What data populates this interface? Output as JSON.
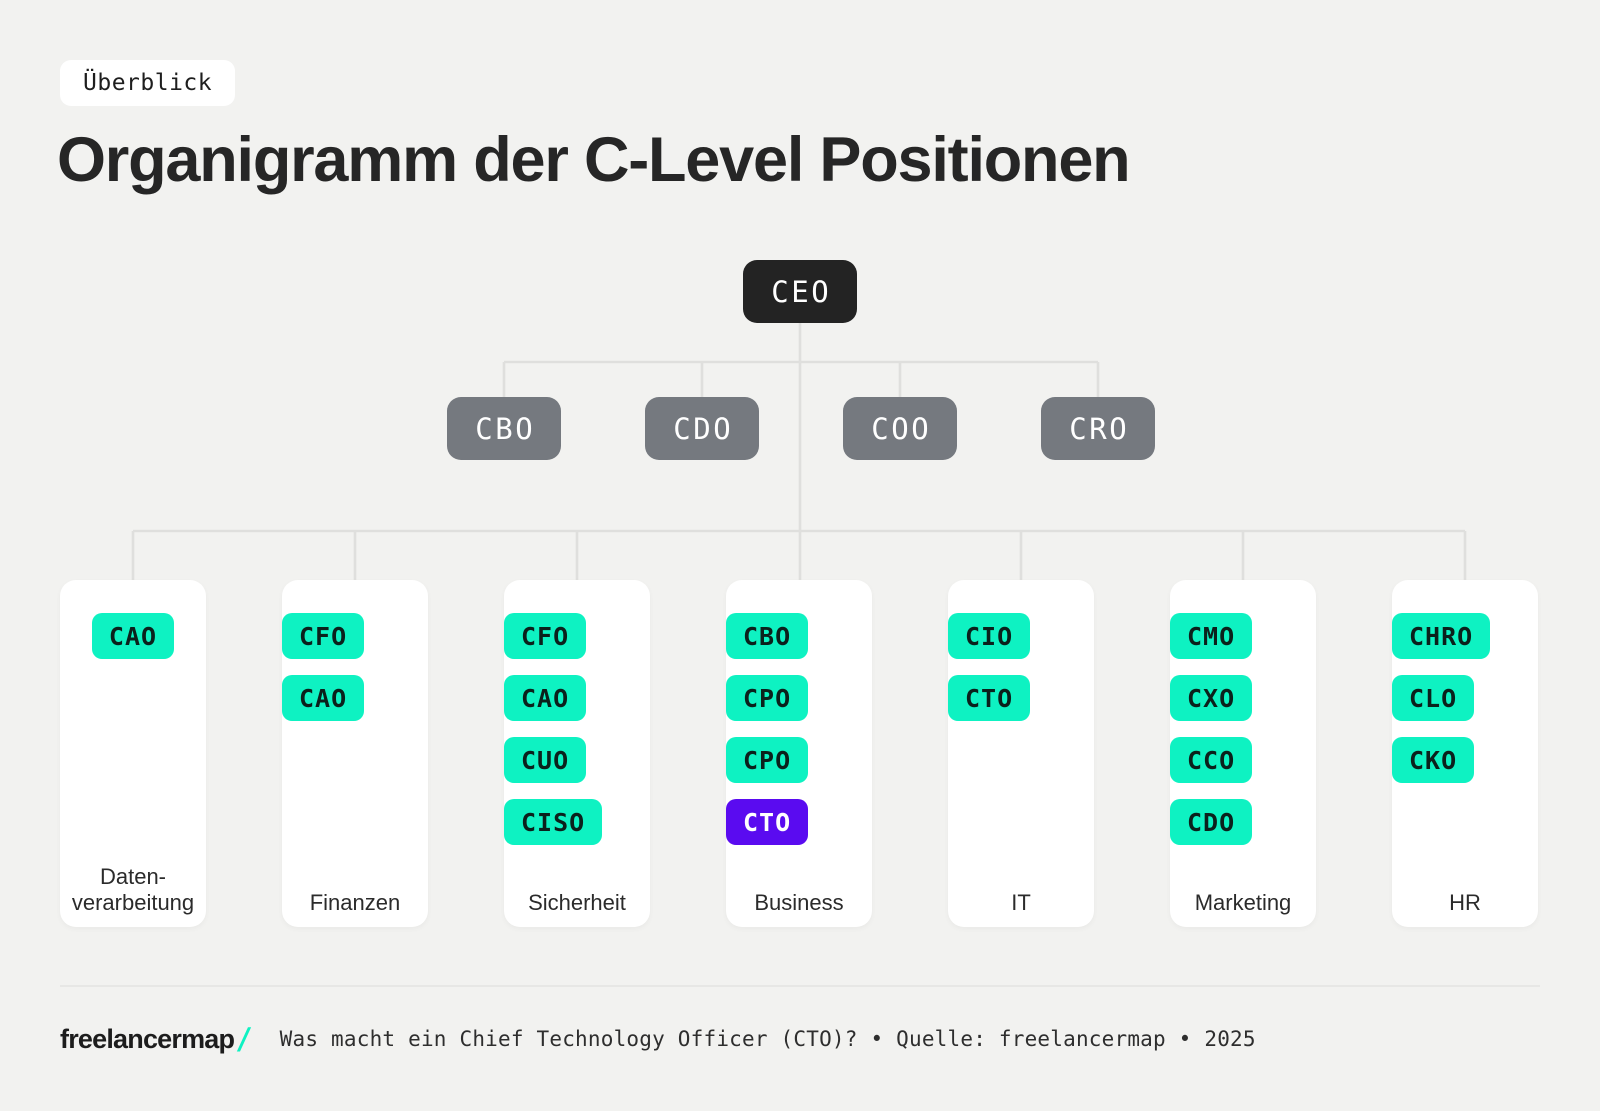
{
  "badge": {
    "label": "Überblick"
  },
  "title": "Organigramm der C-Level Positionen",
  "org": {
    "root": {
      "label": "CEO"
    },
    "executives": [
      {
        "label": "CBO"
      },
      {
        "label": "CDO"
      },
      {
        "label": "COO"
      },
      {
        "label": "CRO"
      }
    ],
    "departments": [
      {
        "label_lines": [
          "Daten-",
          "verarbeitung"
        ],
        "roles": [
          {
            "label": "CAO",
            "variant": "accent"
          }
        ]
      },
      {
        "label_lines": [
          "Finanzen"
        ],
        "roles": [
          {
            "label": "CFO",
            "variant": "accent"
          },
          {
            "label": "CAO",
            "variant": "accent"
          }
        ]
      },
      {
        "label_lines": [
          "Sicherheit"
        ],
        "roles": [
          {
            "label": "CFO",
            "variant": "accent"
          },
          {
            "label": "CAO",
            "variant": "accent"
          },
          {
            "label": "CUO",
            "variant": "accent"
          },
          {
            "label": "CISO",
            "variant": "accent"
          }
        ]
      },
      {
        "label_lines": [
          "Business"
        ],
        "roles": [
          {
            "label": "CBO",
            "variant": "accent"
          },
          {
            "label": "CPO",
            "variant": "accent"
          },
          {
            "label": "CPO",
            "variant": "accent"
          },
          {
            "label": "CTO",
            "variant": "highlight"
          }
        ]
      },
      {
        "label_lines": [
          "IT"
        ],
        "roles": [
          {
            "label": "CIO",
            "variant": "accent"
          },
          {
            "label": "CTO",
            "variant": "accent"
          }
        ]
      },
      {
        "label_lines": [
          "Marketing"
        ],
        "roles": [
          {
            "label": "CMO",
            "variant": "accent"
          },
          {
            "label": "CXO",
            "variant": "accent"
          },
          {
            "label": "CCO",
            "variant": "accent"
          },
          {
            "label": "CDO",
            "variant": "accent"
          }
        ]
      },
      {
        "label_lines": [
          "HR"
        ],
        "roles": [
          {
            "label": "CHRO",
            "variant": "accent"
          },
          {
            "label": "CLO",
            "variant": "accent"
          },
          {
            "label": "CKO",
            "variant": "accent"
          }
        ]
      }
    ]
  },
  "footer": {
    "logo": "freelancermap",
    "logo_slash": "/",
    "tagline": "Was macht ein Chief Technology Officer (CTO)? • Quelle: freelancermap • 2025"
  },
  "colors": {
    "background": "#F2F2F0",
    "card_white": "#FFFFFF",
    "accent_green": "#0EF2C2",
    "highlight_purple": "#5A0BF0",
    "executive_gray": "#75797F",
    "root_dark": "#232323",
    "connector": "#DFDFDD",
    "text_dark": "#262626"
  }
}
